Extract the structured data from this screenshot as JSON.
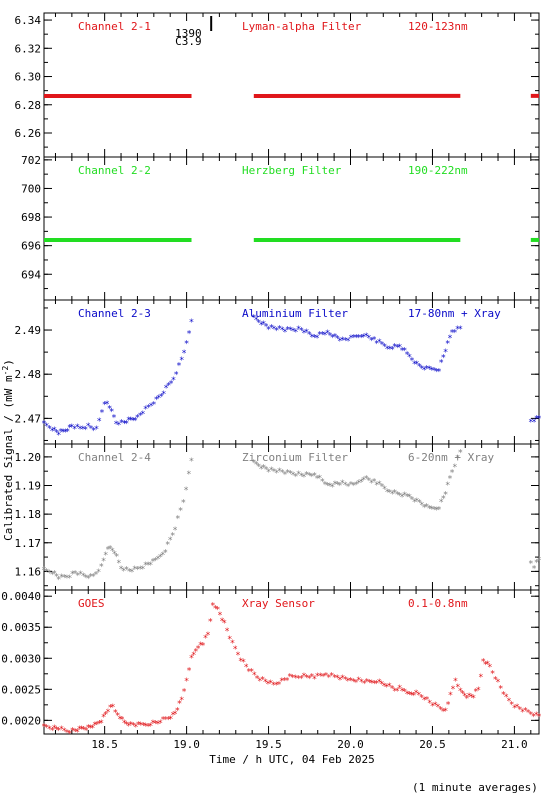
{
  "chart_data": {
    "type": "scatter",
    "xlabel": "Time / h UTC, 04 Feb 2025",
    "ylabel": "Calibrated Signal / (mW m",
    "ylabel_sup": "-2",
    "ylabel_close": ")",
    "footnote": "(1 minute averages)",
    "xlim": [
      18.13,
      21.15
    ],
    "xticks": [
      18.5,
      19.0,
      19.5,
      20.0,
      20.5,
      21.0
    ],
    "xtick_labels": [
      "18.5",
      "19.0",
      "19.5",
      "20.0",
      "20.5",
      "21.0"
    ],
    "event_marker": {
      "x": 19.15,
      "label1": "1390",
      "label2": "C3.9"
    },
    "panels": [
      {
        "id": "ch21",
        "color": "#e0161a",
        "labels": [
          "Channel 2-1",
          "Lyman-alpha Filter",
          "120-123nm"
        ],
        "ylim": [
          6.243,
          6.345
        ],
        "yticks": [
          6.26,
          6.28,
          6.3,
          6.32,
          6.34
        ],
        "ytick_labels": [
          "6.26",
          "6.28",
          "6.30",
          "6.32",
          "6.34"
        ],
        "segments": [
          {
            "x": [
              18.13,
              19.03
            ],
            "y": [
              6.2862,
              6.2862
            ]
          },
          {
            "x": [
              19.41,
              20.67
            ],
            "y": [
              6.2862,
              6.2863
            ]
          },
          {
            "x": [
              21.1,
              21.15
            ],
            "y": [
              6.2863,
              6.2863
            ]
          }
        ]
      },
      {
        "id": "ch22",
        "color": "#22dd22",
        "labels": [
          "Channel 2-2",
          "Herzberg Filter",
          "190-222nm"
        ],
        "ylim": [
          692.2,
          702.2
        ],
        "yticks": [
          694,
          696,
          698,
          700,
          702
        ],
        "ytick_labels": [
          "694",
          "696",
          "698",
          "700",
          "702"
        ],
        "segments": [
          {
            "x": [
              18.13,
              19.03
            ],
            "y": [
              696.4,
              696.4
            ]
          },
          {
            "x": [
              19.41,
              20.67
            ],
            "y": [
              696.4,
              696.4
            ]
          },
          {
            "x": [
              21.1,
              21.15
            ],
            "y": [
              696.4,
              696.4
            ]
          }
        ]
      },
      {
        "id": "ch23",
        "color": "#0a0ac8",
        "labels": [
          "Channel 2-3",
          "Aluminium Filter",
          "17-80nm + Xray"
        ],
        "ylim": [
          2.4642,
          2.4968
        ],
        "yticks": [
          2.47,
          2.48,
          2.49
        ],
        "ytick_labels": [
          "2.47",
          "2.48",
          "2.49"
        ],
        "series": [
          {
            "x": [
              18.13,
              18.18,
              18.22,
              18.26,
              18.3,
              18.35,
              18.4,
              18.45,
              18.5,
              18.53,
              18.57,
              18.62,
              18.66,
              18.7,
              18.75,
              18.8,
              18.86,
              18.92,
              18.97,
              19.0,
              19.03
            ],
            "y": [
              2.4685,
              2.4675,
              2.4665,
              2.467,
              2.468,
              2.4675,
              2.468,
              2.4672,
              2.4735,
              2.4725,
              2.4688,
              2.4688,
              2.4695,
              2.47,
              2.4718,
              2.4735,
              2.4758,
              2.4788,
              2.4832,
              2.4868,
              2.4918
            ]
          },
          {
            "x": [
              19.41,
              19.5,
              19.6,
              19.7,
              19.78,
              19.86,
              19.95,
              20.02,
              20.08,
              20.16,
              20.24,
              20.3,
              20.36,
              20.42,
              20.48,
              20.54,
              20.58,
              20.62,
              20.67
            ],
            "y": [
              2.4925,
              2.4905,
              2.4898,
              2.49,
              2.4883,
              2.4892,
              2.4875,
              2.488,
              2.4888,
              2.4872,
              2.4858,
              2.4862,
              2.4838,
              2.4815,
              2.4808,
              2.481,
              2.4852,
              2.4895,
              2.4902
            ]
          },
          {
            "x": [
              21.1,
              21.12,
              21.15
            ],
            "y": [
              2.4688,
              2.4695,
              2.47
            ]
          }
        ]
      },
      {
        "id": "ch24",
        "color": "#808080",
        "labels": [
          "Channel 2-4",
          "Zirconium Filter",
          "6-20nm + Xray"
        ],
        "ylim": [
          1.1535,
          1.2045
        ],
        "yticks": [
          1.16,
          1.17,
          1.18,
          1.19,
          1.2
        ],
        "ytick_labels": [
          "1.16",
          "1.17",
          "1.18",
          "1.19",
          "1.20"
        ],
        "series": [
          {
            "x": [
              18.13,
              18.18,
              18.22,
              18.27,
              18.32,
              18.37,
              18.43,
              18.48,
              18.52,
              18.56,
              18.6,
              18.65,
              18.7,
              18.75,
              18.81,
              18.87,
              18.93,
              18.98,
              19.03
            ],
            "y": [
              1.16,
              1.1595,
              1.1575,
              1.1578,
              1.1592,
              1.1582,
              1.1578,
              1.1612,
              1.1682,
              1.1665,
              1.161,
              1.16,
              1.1605,
              1.1618,
              1.1632,
              1.1672,
              1.1748,
              1.1842,
              1.1985
            ]
          },
          {
            "x": [
              19.41,
              19.5,
              19.6,
              19.7,
              19.78,
              19.86,
              19.95,
              20.02,
              20.08,
              20.16,
              20.24,
              20.3,
              20.36,
              20.42,
              20.48,
              20.54,
              20.58,
              20.62,
              20.67
            ],
            "y": [
              1.1975,
              1.1952,
              1.1942,
              1.1935,
              1.1935,
              1.1898,
              1.1905,
              1.1895,
              1.1925,
              1.1905,
              1.1878,
              1.1865,
              1.1858,
              1.1838,
              1.1815,
              1.1822,
              1.1872,
              1.1948,
              1.2015
            ]
          },
          {
            "x": [
              21.1,
              21.12,
              21.15
            ],
            "y": [
              1.1622,
              1.1615,
              1.164
            ]
          }
        ]
      },
      {
        "id": "goes",
        "color": "#e0161a",
        "labels": [
          "GOES",
          "Xray Sensor",
          "0.1-0.8nm"
        ],
        "ylim": [
          0.00178,
          0.0041
        ],
        "yticks": [
          0.002,
          0.0025,
          0.003,
          0.0035,
          0.004
        ],
        "ytick_labels": [
          "0.0020",
          "0.0025",
          "0.0030",
          "0.0035",
          "0.0040"
        ],
        "series": [
          {
            "x": [
              18.13,
              18.18,
              18.22,
              18.27,
              18.32,
              18.36,
              18.4,
              18.44,
              18.48,
              18.52,
              18.55,
              18.58,
              18.62,
              18.66,
              18.72,
              18.78,
              18.84,
              18.89,
              18.93,
              18.97,
              19.0,
              19.03,
              19.07,
              19.1,
              19.13,
              19.16,
              19.19,
              19.23,
              19.28,
              19.33,
              19.38,
              19.43,
              19.48,
              19.53,
              19.58,
              19.63,
              19.7,
              19.78,
              19.85,
              19.92,
              20.0,
              20.05,
              20.1,
              20.16,
              20.22,
              20.27,
              20.3,
              20.33,
              20.36,
              20.4,
              20.45,
              20.5,
              20.55,
              20.58,
              20.61,
              20.64,
              20.67,
              20.71,
              20.75,
              20.78,
              20.81,
              20.85,
              20.9,
              20.95,
              21.0,
              21.05,
              21.1,
              21.15
            ],
            "y": [
              0.00188,
              0.00186,
              0.00185,
              0.00181,
              0.00182,
              0.00185,
              0.00187,
              0.0019,
              0.00198,
              0.00215,
              0.00222,
              0.00208,
              0.00195,
              0.00192,
              0.0019,
              0.00193,
              0.00197,
              0.00202,
              0.0021,
              0.00232,
              0.00262,
              0.00298,
              0.00318,
              0.00322,
              0.00338,
              0.00385,
              0.00378,
              0.00355,
              0.00322,
              0.00298,
              0.0028,
              0.00268,
              0.00262,
              0.00256,
              0.00262,
              0.00268,
              0.0027,
              0.00268,
              0.00273,
              0.00268,
              0.00263,
              0.00263,
              0.0026,
              0.00262,
              0.00255,
              0.00248,
              0.00252,
              0.00246,
              0.0024,
              0.00242,
              0.00235,
              0.00225,
              0.00218,
              0.00215,
              0.0024,
              0.00262,
              0.00245,
              0.00238,
              0.00238,
              0.0025,
              0.00295,
              0.00285,
              0.0026,
              0.00235,
              0.00222,
              0.00215,
              0.0021,
              0.00206
            ]
          }
        ]
      }
    ]
  }
}
